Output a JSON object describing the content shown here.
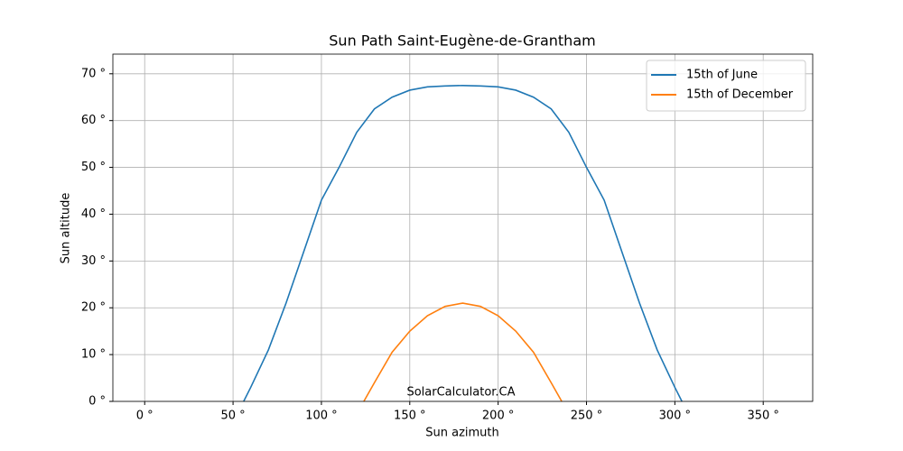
{
  "chart_data": {
    "type": "line",
    "title": "Sun Path Saint-Eugène-de-Grantham",
    "x_label": "Sun azimuth",
    "y_label": "Sun altitude",
    "annotation": "SolarCalculator.CA",
    "xlim": [
      -18,
      378
    ],
    "ylim": [
      0,
      74.2
    ],
    "xticks": [
      {
        "value": 0,
        "label": "0 °"
      },
      {
        "value": 50,
        "label": "50 °"
      },
      {
        "value": 100,
        "label": "100 °"
      },
      {
        "value": 150,
        "label": "150 °"
      },
      {
        "value": 200,
        "label": "200 °"
      },
      {
        "value": 250,
        "label": "250 °"
      },
      {
        "value": 300,
        "label": "300 °"
      },
      {
        "value": 350,
        "label": "350 °"
      }
    ],
    "yticks": [
      {
        "value": 0,
        "label": "0 °"
      },
      {
        "value": 10,
        "label": "10 °"
      },
      {
        "value": 20,
        "label": "20 °"
      },
      {
        "value": 30,
        "label": "30 °"
      },
      {
        "value": 40,
        "label": "40 °"
      },
      {
        "value": 50,
        "label": "50 °"
      },
      {
        "value": 60,
        "label": "60 °"
      },
      {
        "value": 70,
        "label": "70 °"
      }
    ],
    "grid": true,
    "legend": "upper right",
    "series": [
      {
        "name": "15th of June",
        "color": "#1f77b4",
        "x": [
          56,
          60,
          70,
          80,
          90,
          100,
          110,
          120,
          130,
          140,
          150,
          160,
          170,
          180,
          190,
          200,
          210,
          220,
          230,
          240,
          250,
          260,
          270,
          280,
          290,
          300,
          304
        ],
        "values": [
          0,
          3,
          11,
          21,
          32,
          43,
          50,
          57.5,
          62.5,
          65,
          66.5,
          67.2,
          67.4,
          67.5,
          67.4,
          67.2,
          66.5,
          65,
          62.5,
          57.5,
          50,
          43,
          32,
          21,
          11,
          3,
          0
        ]
      },
      {
        "name": "15th of December",
        "color": "#ff7f0e",
        "x": [
          124,
          130,
          140,
          150,
          160,
          170,
          180,
          190,
          200,
          210,
          220,
          230,
          236
        ],
        "values": [
          0,
          4,
          10.5,
          15,
          18.3,
          20.3,
          21,
          20.3,
          18.3,
          15,
          10.5,
          4,
          0
        ]
      }
    ]
  }
}
